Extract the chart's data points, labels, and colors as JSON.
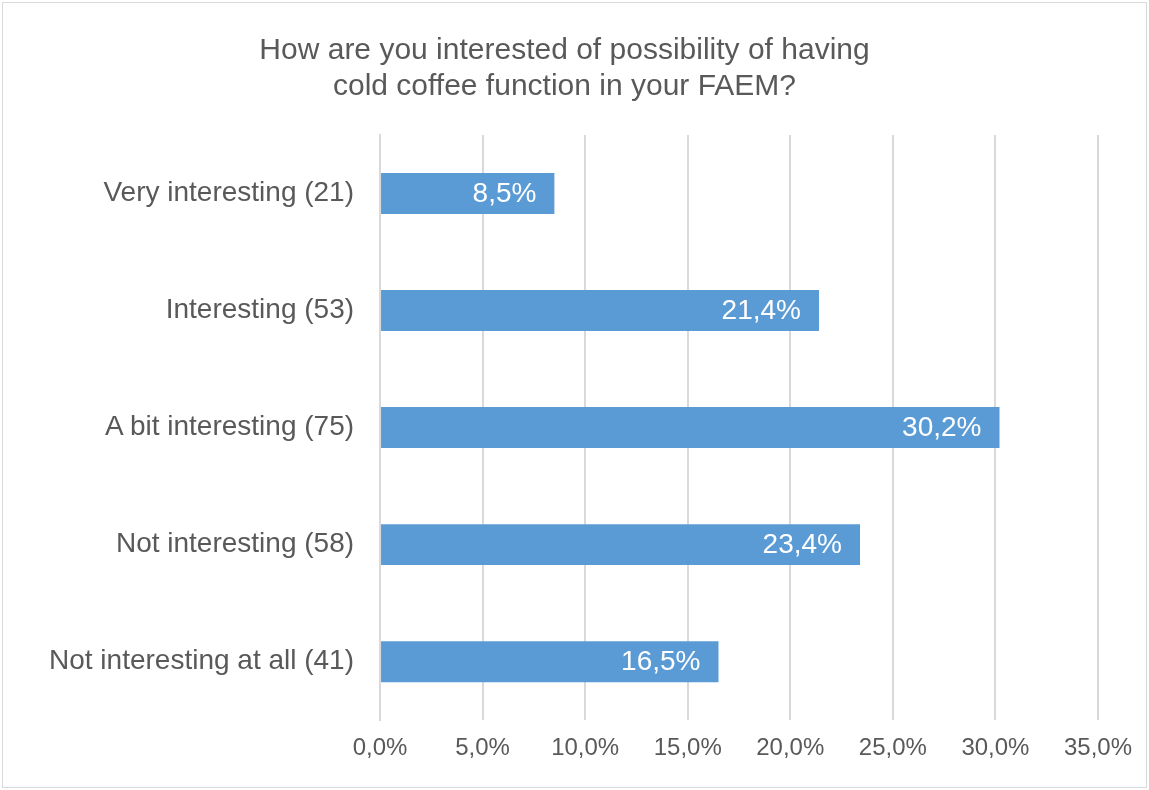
{
  "chart_data": {
    "type": "bar",
    "orientation": "horizontal",
    "title": "How are you interested of possibility of having\ncold coffee function in your FAEM?",
    "categories": [
      "Very interesting (21)",
      "Interesting (53)",
      "A bit interesting (75)",
      "Not interesting (58)",
      "Not interesting at all (41)"
    ],
    "values": [
      8.5,
      21.4,
      30.2,
      23.4,
      16.5
    ],
    "value_labels": [
      "8,5%",
      "21,4%",
      "30,2%",
      "23,4%",
      "16,5%"
    ],
    "color": "#5b9bd5",
    "xlim": [
      0,
      35
    ],
    "xticks": [
      {
        "value": 0,
        "label": "0,0%"
      },
      {
        "value": 5,
        "label": "5,0%"
      },
      {
        "value": 10,
        "label": "10,0%"
      },
      {
        "value": 15,
        "label": "15,0%"
      },
      {
        "value": 20,
        "label": "20,0%"
      },
      {
        "value": 25,
        "label": "25,0%"
      },
      {
        "value": 30,
        "label": "30,0%"
      },
      {
        "value": 35,
        "label": "35,0%"
      }
    ],
    "grid": "x",
    "legend": false
  }
}
